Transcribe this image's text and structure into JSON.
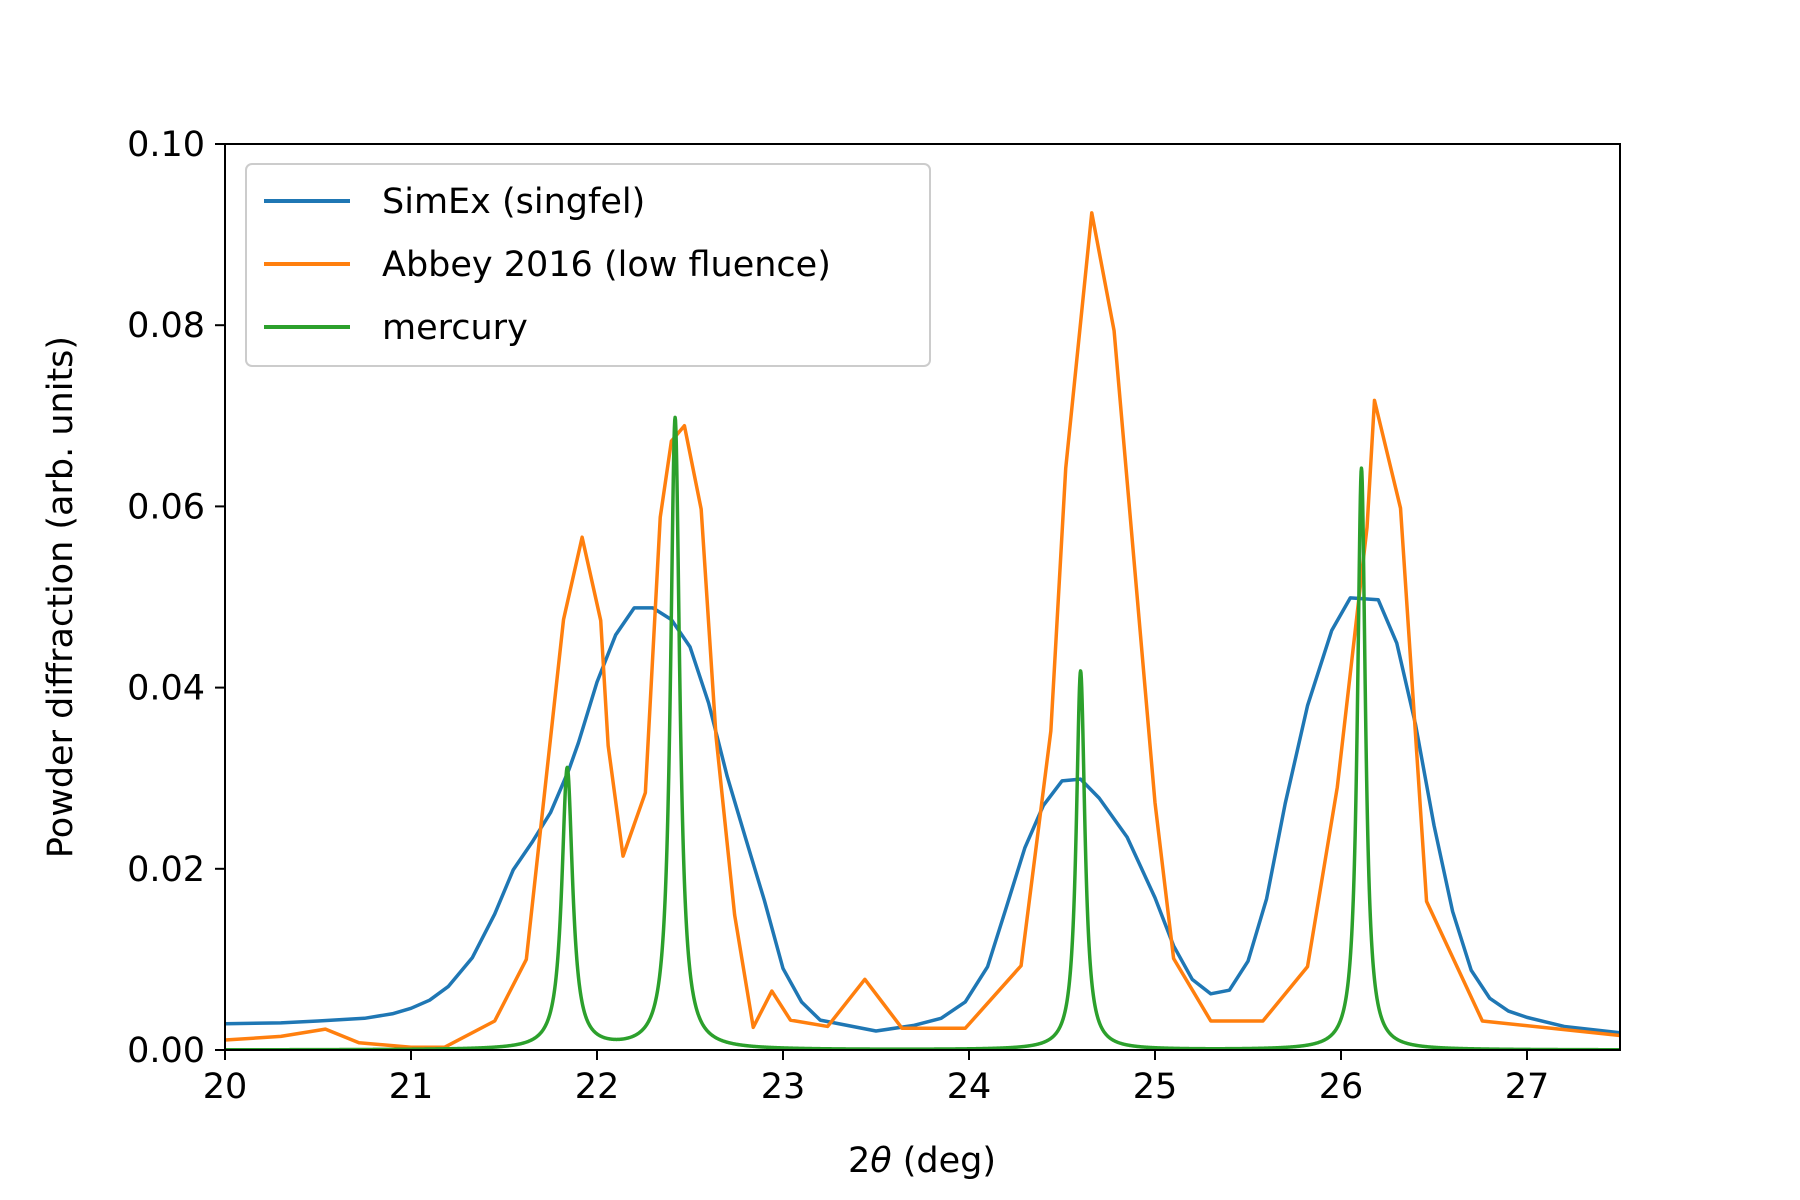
{
  "chart_data": {
    "type": "line",
    "xlabel": "2θ (deg)",
    "ylabel": "Powder diffraction (arb. units)",
    "xlim": [
      20,
      27.5
    ],
    "ylim": [
      0,
      0.1
    ],
    "xticks": [
      20,
      21,
      22,
      23,
      24,
      25,
      26,
      27
    ],
    "yticks": [
      0.0,
      0.02,
      0.04,
      0.06,
      0.08,
      0.1
    ],
    "xtick_labels": [
      "20",
      "21",
      "22",
      "23",
      "24",
      "25",
      "26",
      "27"
    ],
    "ytick_labels": [
      "0.00",
      "0.02",
      "0.04",
      "0.06",
      "0.08",
      "0.10"
    ],
    "grid": false,
    "legend_position": "upper-left",
    "series": [
      {
        "name": "SimEx (singfel)",
        "color": "#1f77b4",
        "x": [
          20.0,
          20.3,
          20.5,
          20.75,
          20.9,
          21.0,
          21.1,
          21.2,
          21.33,
          21.45,
          21.55,
          21.65,
          21.75,
          21.85,
          21.9,
          22.0,
          22.1,
          22.2,
          22.3,
          22.4,
          22.5,
          22.6,
          22.7,
          22.8,
          22.9,
          23.0,
          23.1,
          23.2,
          23.5,
          23.7,
          23.85,
          23.98,
          24.1,
          24.2,
          24.3,
          24.4,
          24.5,
          24.6,
          24.7,
          24.85,
          25.0,
          25.1,
          25.2,
          25.3,
          25.4,
          25.5,
          25.6,
          25.7,
          25.82,
          25.95,
          26.05,
          26.2,
          26.3,
          26.4,
          26.5,
          26.6,
          26.7,
          26.8,
          26.9,
          27.0,
          27.2,
          27.5
        ],
        "y": [
          0.0029,
          0.003,
          0.0032,
          0.0035,
          0.004,
          0.0046,
          0.0055,
          0.007,
          0.0102,
          0.015,
          0.0199,
          0.0229,
          0.0262,
          0.031,
          0.0339,
          0.0406,
          0.0458,
          0.0488,
          0.0488,
          0.0475,
          0.0445,
          0.0383,
          0.0302,
          0.0233,
          0.0165,
          0.009,
          0.0053,
          0.0033,
          0.0021,
          0.0027,
          0.0035,
          0.0053,
          0.0092,
          0.0157,
          0.0223,
          0.027,
          0.0297,
          0.0299,
          0.0278,
          0.0235,
          0.0168,
          0.0115,
          0.0078,
          0.0062,
          0.0066,
          0.0098,
          0.0167,
          0.0272,
          0.038,
          0.0463,
          0.0499,
          0.0497,
          0.0449,
          0.036,
          0.0248,
          0.0153,
          0.0088,
          0.0057,
          0.0043,
          0.0036,
          0.0026,
          0.0019
        ]
      },
      {
        "name": "Abbey 2016 (low fluence)",
        "color": "#ff7f0e",
        "x": [
          20.0,
          20.3,
          20.54,
          20.72,
          21.0,
          21.18,
          21.45,
          21.62,
          21.82,
          21.92,
          22.02,
          22.06,
          22.14,
          22.26,
          22.34,
          22.4,
          22.47,
          22.56,
          22.64,
          22.74,
          22.84,
          22.94,
          23.04,
          23.24,
          23.44,
          23.64,
          23.98,
          24.28,
          24.44,
          24.52,
          24.6,
          24.66,
          24.78,
          24.9,
          25.0,
          25.1,
          25.3,
          25.58,
          25.82,
          25.98,
          26.14,
          26.18,
          26.32,
          26.46,
          26.76,
          27.5
        ],
        "y": [
          0.0011,
          0.0015,
          0.0023,
          0.0008,
          0.0003,
          0.0003,
          0.0032,
          0.01,
          0.0475,
          0.0566,
          0.0474,
          0.0336,
          0.0214,
          0.0284,
          0.0588,
          0.0672,
          0.0689,
          0.0597,
          0.0346,
          0.0149,
          0.0025,
          0.0065,
          0.0033,
          0.0026,
          0.0078,
          0.0024,
          0.0024,
          0.0093,
          0.0352,
          0.0642,
          0.0803,
          0.0924,
          0.0794,
          0.051,
          0.0273,
          0.0101,
          0.0032,
          0.0032,
          0.0092,
          0.029,
          0.0577,
          0.0717,
          0.0598,
          0.0164,
          0.0032,
          0.0016
        ]
      },
      {
        "name": "mercury",
        "color": "#2ca02c",
        "peaks": [
          {
            "center": 21.84,
            "height": 0.031,
            "hwhm": 0.035
          },
          {
            "center": 22.42,
            "height": 0.0697,
            "hwhm": 0.03
          },
          {
            "center": 24.6,
            "height": 0.0418,
            "hwhm": 0.028
          },
          {
            "center": 26.11,
            "height": 0.0642,
            "hwhm": 0.026
          }
        ]
      }
    ]
  }
}
